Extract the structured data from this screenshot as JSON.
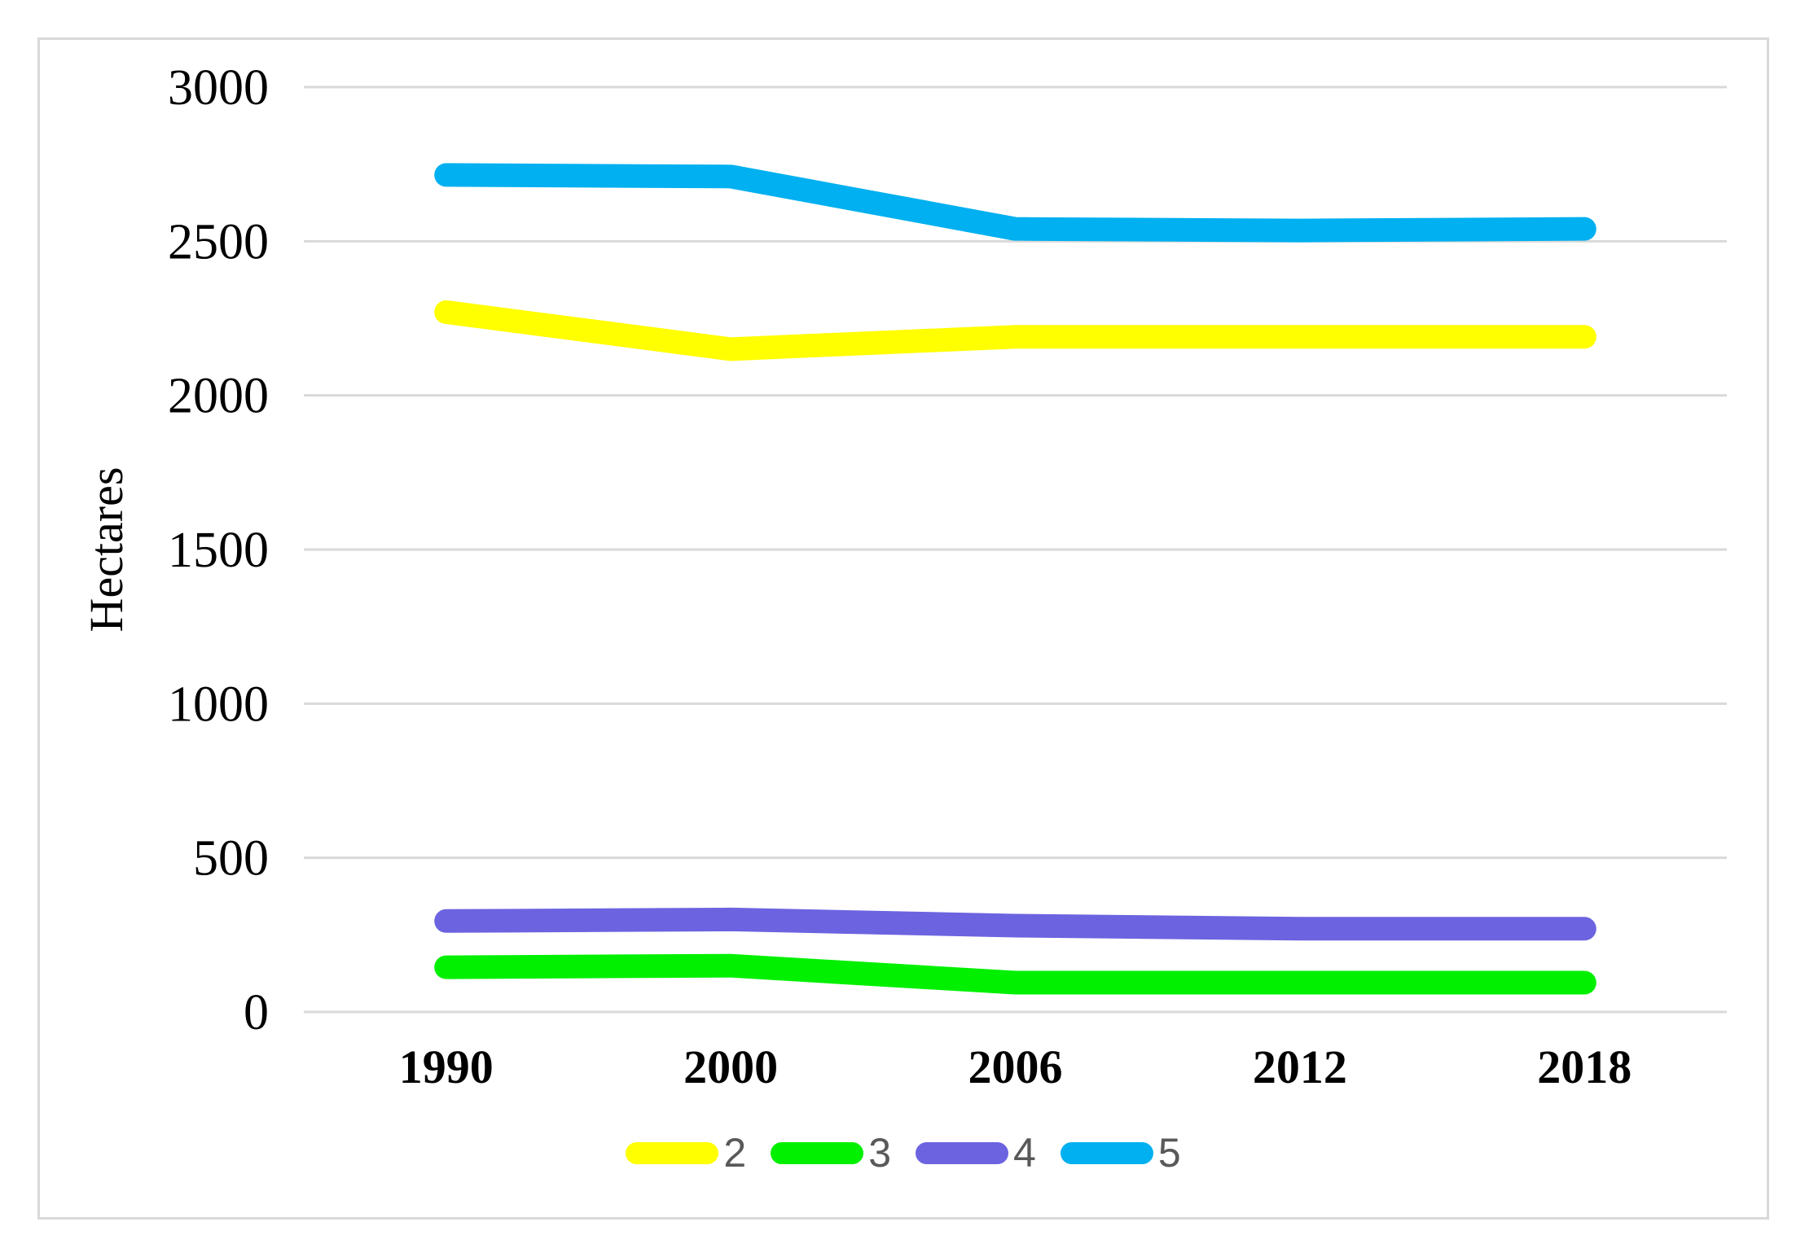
{
  "chart_data": {
    "type": "line",
    "title": "",
    "xlabel": "",
    "ylabel": "Hectares",
    "categories": [
      "1990",
      "2000",
      "2006",
      "2012",
      "2018"
    ],
    "yticks": [
      0,
      500,
      1000,
      1500,
      2000,
      2500,
      3000
    ],
    "ylim": [
      0,
      3000
    ],
    "grid": "horizontal",
    "legend_position": "bottom-center",
    "series": [
      {
        "name": "2",
        "color": "#ffff00",
        "values": [
          2270,
          2150,
          2190,
          2190,
          2190
        ]
      },
      {
        "name": "3",
        "color": "#00f000",
        "values": [
          145,
          150,
          95,
          95,
          95
        ]
      },
      {
        "name": "4",
        "color": "#6c63e0",
        "values": [
          295,
          300,
          280,
          270,
          270
        ]
      },
      {
        "name": "5",
        "color": "#00b0f0",
        "values": [
          2715,
          2710,
          2540,
          2535,
          2540
        ]
      }
    ]
  },
  "colors": {
    "background": "#ffffff",
    "frame_border": "#d9d9d9",
    "gridline": "#d9d9d9",
    "axis_text": "#000000",
    "legend_text": "#595959"
  }
}
